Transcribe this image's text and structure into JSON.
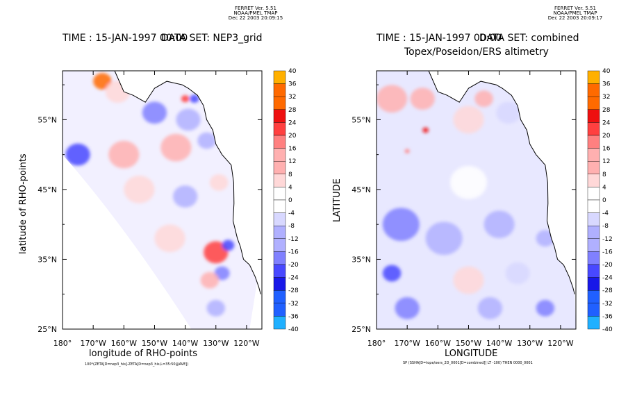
{
  "left_panel": {
    "header": [
      "FERRET Ver. 5.51",
      "NOAA/PMEL TMAP",
      "Dec 22 2003 20:09:15"
    ],
    "time_title": "TIME : 15-JAN-1997 00:00",
    "dataset_title": "DATA SET: NEP3_grid",
    "footer": "100*(ZETA[D=nep3_his]-ZETA[D=nep3_his,L=35:50@AVE])"
  },
  "right_panel": {
    "header": [
      "FERRET Ver. 5.51",
      "NOAA/PMEL TMAP",
      "Dec 22 2003 20:09:17"
    ],
    "time_title": "TIME : 15-JAN-1997 00:00",
    "dataset_title": "DATA SET: combined",
    "dataset_subtitle": "Topex/Poseidon/ERS altimetry",
    "footer": "SP (SSHA[D=tope/oers_2D_0001[D=combined]] LT -100) THEN 0000_0001"
  },
  "colors": {
    "positive": [
      "#ffffff",
      "#ffd8d8",
      "#ffb0b0",
      "#ff8080",
      "#ff4040",
      "#ee1010",
      "#ff6a00",
      "#ffb000",
      "#ffff00"
    ],
    "negative": [
      "#ffffff",
      "#d8d8ff",
      "#b0b0ff",
      "#8080ff",
      "#4848ff",
      "#1818e8",
      "#2060ff",
      "#20b0ff",
      "#00ffff"
    ]
  },
  "chart_data": [
    {
      "type": "heatmap",
      "title": "TIME : 15-JAN-1997 00:00",
      "subtitle": "DATA SET: NEP3_grid",
      "xlabel": "longitude of RHO-points",
      "ylabel": "latitude of RHO-points",
      "x_ticks": [
        "180°",
        "170°W",
        "160°W",
        "150°W",
        "140°W",
        "130°W",
        "120°W"
      ],
      "y_ticks": [
        "25°N",
        "35°N",
        "45°N",
        "55°N"
      ],
      "xlim": [
        -180,
        -115
      ],
      "ylim": [
        25,
        62
      ],
      "colorbar": {
        "levels": [
          40,
          36,
          32,
          28,
          24,
          20,
          16,
          12,
          8,
          4,
          0,
          -4,
          -8,
          -12,
          -16,
          -20,
          -24,
          -28,
          -32,
          -36,
          -40
        ]
      },
      "blobs": [
        {
          "lon": -167,
          "lat": 60.5,
          "v": 32,
          "r": 3
        },
        {
          "lon": -162,
          "lat": 59,
          "v": 8,
          "r": 4
        },
        {
          "lon": -140,
          "lat": 58,
          "v": 24,
          "r": 1.3
        },
        {
          "lon": -137,
          "lat": 58,
          "v": -24,
          "r": 1.5
        },
        {
          "lon": -150,
          "lat": 56,
          "v": -16,
          "r": 4
        },
        {
          "lon": -139,
          "lat": 55,
          "v": -14,
          "r": 4
        },
        {
          "lon": -175,
          "lat": 50,
          "v": -24,
          "r": 4
        },
        {
          "lon": -160,
          "lat": 50,
          "v": 10,
          "r": 5
        },
        {
          "lon": -143,
          "lat": 51,
          "v": 10,
          "r": 5
        },
        {
          "lon": -133,
          "lat": 52,
          "v": -10,
          "r": 3
        },
        {
          "lon": -155,
          "lat": 45,
          "v": 6,
          "r": 5
        },
        {
          "lon": -140,
          "lat": 44,
          "v": -10,
          "r": 4
        },
        {
          "lon": -129,
          "lat": 46,
          "v": 8,
          "r": 3
        },
        {
          "lon": -145,
          "lat": 38,
          "v": 8,
          "r": 5
        },
        {
          "lon": -130,
          "lat": 36,
          "v": 20,
          "r": 4
        },
        {
          "lon": -126,
          "lat": 37,
          "v": -20,
          "r": 2
        },
        {
          "lon": -128,
          "lat": 33,
          "v": -18,
          "r": 2.5
        },
        {
          "lon": -132,
          "lat": 32,
          "v": 14,
          "r": 3
        },
        {
          "lon": -130,
          "lat": 28,
          "v": -12,
          "r": 3
        }
      ]
    },
    {
      "type": "heatmap",
      "title": "TIME : 15-JAN-1997 00:00",
      "subtitle": "DATA SET: combined Topex/Poseidon/ERS altimetry",
      "xlabel": "LONGITUDE",
      "ylabel": "LATITUDE",
      "x_ticks": [
        "180°",
        "170°W",
        "160°W",
        "150°W",
        "140°W",
        "130°W",
        "120°W"
      ],
      "y_ticks": [
        "25°N",
        "35°N",
        "45°N",
        "55°N"
      ],
      "xlim": [
        -180,
        -115
      ],
      "ylim": [
        25,
        62
      ],
      "colorbar": {
        "levels": [
          40,
          36,
          32,
          28,
          24,
          20,
          16,
          12,
          8,
          4,
          0,
          -4,
          -8,
          -12,
          -16,
          -20,
          -24,
          -28,
          -32,
          -36,
          -40
        ]
      },
      "blobs": [
        {
          "lon": -175,
          "lat": 58,
          "v": 14,
          "r": 5
        },
        {
          "lon": -165,
          "lat": 58,
          "v": 12,
          "r": 4
        },
        {
          "lon": -164,
          "lat": 53.5,
          "v": 28,
          "r": 1
        },
        {
          "lon": -170,
          "lat": 50.5,
          "v": 18,
          "r": 0.8
        },
        {
          "lon": -150,
          "lat": 55,
          "v": 6,
          "r": 5
        },
        {
          "lon": -137,
          "lat": 56,
          "v": -8,
          "r": 4
        },
        {
          "lon": -145,
          "lat": 58,
          "v": 10,
          "r": 3
        },
        {
          "lon": -150,
          "lat": 46,
          "v": 4,
          "r": 6
        },
        {
          "lon": -172,
          "lat": 40,
          "v": -18,
          "r": 6
        },
        {
          "lon": -158,
          "lat": 38,
          "v": -14,
          "r": 6
        },
        {
          "lon": -140,
          "lat": 40,
          "v": -10,
          "r": 5
        },
        {
          "lon": -125,
          "lat": 38,
          "v": -10,
          "r": 3
        },
        {
          "lon": -175,
          "lat": 33,
          "v": -22,
          "r": 3
        },
        {
          "lon": -150,
          "lat": 32,
          "v": 6,
          "r": 5
        },
        {
          "lon": -134,
          "lat": 33,
          "v": -6,
          "r": 4
        },
        {
          "lon": -170,
          "lat": 28,
          "v": -16,
          "r": 4
        },
        {
          "lon": -143,
          "lat": 28,
          "v": -10,
          "r": 4
        },
        {
          "lon": -125,
          "lat": 28,
          "v": -16,
          "r": 3
        }
      ]
    }
  ]
}
